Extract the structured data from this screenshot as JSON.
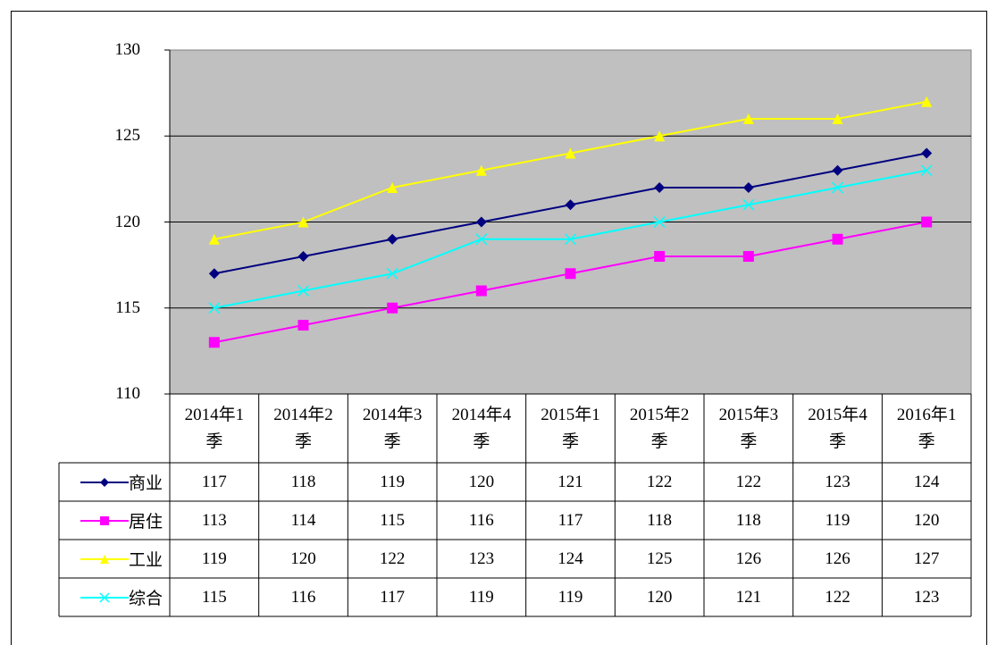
{
  "chart_data": {
    "type": "line",
    "categories": [
      "2014年1季",
      "2014年2季",
      "2014年3季",
      "2014年4季",
      "2015年1季",
      "2015年2季",
      "2015年3季",
      "2015年4季",
      "2016年1季"
    ],
    "series": [
      {
        "name": "商业",
        "color": "#000080",
        "marker": "diamond",
        "values": [
          117,
          118,
          119,
          120,
          121,
          122,
          122,
          123,
          124
        ]
      },
      {
        "name": "居住",
        "color": "#ff00ff",
        "marker": "square",
        "values": [
          113,
          114,
          115,
          116,
          117,
          118,
          118,
          119,
          120
        ]
      },
      {
        "name": "工业",
        "color": "#ffff00",
        "marker": "triangle",
        "values": [
          119,
          120,
          122,
          123,
          124,
          125,
          126,
          126,
          127
        ]
      },
      {
        "name": "综合",
        "color": "#00ffff",
        "marker": "x",
        "values": [
          115,
          116,
          117,
          119,
          119,
          120,
          121,
          122,
          123
        ]
      }
    ],
    "ylim": [
      110,
      130
    ],
    "yticks": [
      110,
      115,
      120,
      125,
      130
    ],
    "grid": true,
    "data_table": true
  }
}
